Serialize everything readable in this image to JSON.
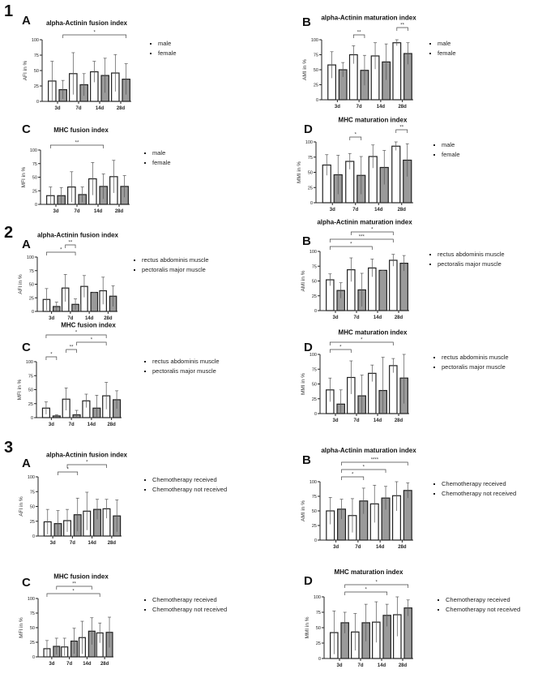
{
  "sections": [
    "1",
    "2",
    "3"
  ],
  "chart_data": [
    {
      "panel": "A",
      "section": "1",
      "type": "bar",
      "title": "alpha-Actinin fusion index",
      "ylabel": "AFI in %",
      "ylim": [
        0,
        100
      ],
      "yticks": [
        0,
        25,
        50,
        75,
        100
      ],
      "categories": [
        "3d",
        "7d",
        "14d",
        "28d"
      ],
      "series": [
        {
          "name": "male",
          "values": [
            33,
            45,
            48,
            46
          ],
          "sd": [
            32,
            34,
            17,
            30
          ],
          "color": "#ffffff"
        },
        {
          "name": "female",
          "values": [
            19,
            27,
            42,
            36
          ],
          "sd": [
            15,
            18,
            28,
            25
          ],
          "color": "#9a9a9a"
        }
      ],
      "significance": [
        {
          "from": 1,
          "to": 7,
          "label": "*"
        }
      ]
    },
    {
      "panel": "B",
      "section": "1",
      "type": "bar",
      "title": "alpha-Actinin maturation index",
      "ylabel": "AMI in %",
      "ylim": [
        0,
        100
      ],
      "yticks": [
        0,
        25,
        50,
        75,
        100
      ],
      "categories": [
        "3d",
        "7d",
        "14d",
        "28d"
      ],
      "series": [
        {
          "name": "male",
          "values": [
            58,
            75,
            73,
            95
          ],
          "sd": [
            22,
            15,
            22,
            5
          ],
          "color": "#ffffff"
        },
        {
          "name": "female",
          "values": [
            50,
            49,
            63,
            77
          ],
          "sd": [
            12,
            25,
            30,
            18
          ],
          "color": "#9a9a9a"
        }
      ],
      "significance": [
        {
          "from": 2,
          "to": 3,
          "label": "**"
        },
        {
          "from": 6,
          "to": 7,
          "label": "**"
        }
      ]
    },
    {
      "panel": "C",
      "section": "1",
      "type": "bar",
      "title": "MHC fusion index",
      "ylabel": "MFI in %",
      "ylim": [
        0,
        100
      ],
      "yticks": [
        0,
        25,
        50,
        75,
        100
      ],
      "categories": [
        "3d",
        "7d",
        "14d",
        "28d"
      ],
      "series": [
        {
          "name": "male",
          "values": [
            16,
            32,
            47,
            51
          ],
          "sd": [
            16,
            28,
            30,
            30
          ],
          "color": "#ffffff"
        },
        {
          "name": "female",
          "values": [
            16,
            18,
            33,
            33
          ],
          "sd": [
            15,
            14,
            23,
            20
          ],
          "color": "#9a9a9a"
        }
      ],
      "significance": [
        {
          "from": 0,
          "to": 5,
          "label": "**"
        }
      ]
    },
    {
      "panel": "D",
      "section": "1",
      "type": "bar",
      "title": "MHC maturation index",
      "ylabel": "MMI in %",
      "ylim": [
        0,
        100
      ],
      "yticks": [
        0,
        25,
        50,
        75,
        100
      ],
      "categories": [
        "3d",
        "7d",
        "14d",
        "28d"
      ],
      "series": [
        {
          "name": "male",
          "values": [
            62,
            68,
            76,
            93
          ],
          "sd": [
            17,
            13,
            19,
            7
          ],
          "color": "#ffffff"
        },
        {
          "name": "female",
          "values": [
            46,
            45,
            58,
            70
          ],
          "sd": [
            32,
            31,
            28,
            27
          ],
          "color": "#9a9a9a"
        }
      ],
      "significance": [
        {
          "from": 2,
          "to": 3,
          "label": "*"
        },
        {
          "from": 6,
          "to": 7,
          "label": "**"
        }
      ]
    },
    {
      "panel": "A",
      "section": "2",
      "type": "bar",
      "title": "alpha-Actinin fusion index",
      "ylabel": "AFI in %",
      "ylim": [
        0,
        100
      ],
      "yticks": [
        0,
        25,
        50,
        75,
        100
      ],
      "categories": [
        "3d",
        "7d",
        "14d",
        "28d"
      ],
      "series": [
        {
          "name": "rectus abdominis muscle",
          "values": [
            22,
            43,
            46,
            38
          ],
          "sd": [
            20,
            25,
            20,
            25
          ],
          "color": "#ffffff"
        },
        {
          "name": "pectoralis major muscle",
          "values": [
            9,
            13,
            35,
            28
          ],
          "sd": [
            8,
            10,
            0,
            19
          ],
          "color": "#9a9a9a"
        }
      ],
      "significance": [
        {
          "from": 0,
          "to": 3,
          "label": "*"
        },
        {
          "from": 2,
          "to": 3,
          "label": "**"
        }
      ]
    },
    {
      "panel": "B",
      "section": "2",
      "type": "bar",
      "title": "alpha-Actinin maturation index",
      "ylabel": "AMI in %",
      "ylim": [
        0,
        100
      ],
      "yticks": [
        0,
        25,
        50,
        75,
        100
      ],
      "categories": [
        "3d",
        "7d",
        "14d",
        "28d"
      ],
      "series": [
        {
          "name": "rectus abdominis muscle",
          "values": [
            52,
            69,
            72,
            85
          ],
          "sd": [
            10,
            20,
            15,
            10
          ],
          "color": "#ffffff"
        },
        {
          "name": "pectoralis major muscle",
          "values": [
            34,
            35,
            68,
            80
          ],
          "sd": [
            13,
            28,
            0,
            13
          ],
          "color": "#9a9a9a"
        }
      ],
      "significance": [
        {
          "from": 0,
          "to": 4,
          "label": "*"
        },
        {
          "from": 0,
          "to": 6,
          "label": "***"
        },
        {
          "from": 2,
          "to": 6,
          "label": "*"
        }
      ]
    },
    {
      "panel": "C",
      "section": "2",
      "type": "bar",
      "title": "MHC fusion index",
      "ylabel": "MFI in %",
      "ylim": [
        0,
        100
      ],
      "yticks": [
        0,
        25,
        50,
        75,
        100
      ],
      "categories": [
        "3d",
        "7d",
        "14d",
        "28d"
      ],
      "series": [
        {
          "name": "rectus abdominis muscle",
          "values": [
            17,
            33,
            30,
            39
          ],
          "sd": [
            11,
            20,
            12,
            24
          ],
          "color": "#ffffff"
        },
        {
          "name": "pectoralis major muscle",
          "values": [
            3,
            5,
            17,
            32
          ],
          "sd": [
            2,
            8,
            23,
            16
          ],
          "color": "#9a9a9a"
        }
      ],
      "significance": [
        {
          "from": 0,
          "to": 1,
          "label": "*"
        },
        {
          "from": 2,
          "to": 3,
          "label": "**"
        },
        {
          "from": 3,
          "to": 6,
          "label": "*"
        },
        {
          "from": 0,
          "to": 6,
          "label": "*"
        }
      ]
    },
    {
      "panel": "D",
      "section": "2",
      "type": "bar",
      "title": "MHC maturation index",
      "ylabel": "MMI in %",
      "ylim": [
        0,
        100
      ],
      "yticks": [
        0,
        25,
        50,
        75,
        100
      ],
      "categories": [
        "3d",
        "7d",
        "14d",
        "28d"
      ],
      "series": [
        {
          "name": "rectus abdominis muscle",
          "values": [
            40,
            61,
            68,
            81
          ],
          "sd": [
            20,
            28,
            14,
            12
          ],
          "color": "#ffffff"
        },
        {
          "name": "pectoralis major muscle",
          "values": [
            16,
            30,
            39,
            60
          ],
          "sd": [
            24,
            35,
            56,
            43
          ],
          "color": "#9a9a9a"
        }
      ],
      "significance": [
        {
          "from": 0,
          "to": 2,
          "label": "*"
        },
        {
          "from": 0,
          "to": 6,
          "label": "*"
        }
      ]
    },
    {
      "panel": "A",
      "section": "3",
      "type": "bar",
      "title": "alpha-Actinin fusion index",
      "ylabel": "AFI in %",
      "ylim": [
        0,
        100
      ],
      "yticks": [
        0,
        25,
        50,
        75,
        100
      ],
      "categories": [
        "3d",
        "7d",
        "14d",
        "28d"
      ],
      "series": [
        {
          "name": "Chemotherapy received",
          "values": [
            24,
            26,
            42,
            46
          ],
          "sd": [
            21,
            19,
            32,
            16
          ],
          "color": "#ffffff"
        },
        {
          "name": "Chemotherapy not received",
          "values": [
            21,
            36,
            45,
            34
          ],
          "sd": [
            22,
            28,
            17,
            27
          ],
          "color": "#9a9a9a"
        }
      ],
      "significance": [
        {
          "from": 1,
          "to": 3,
          "label": "*"
        },
        {
          "from": 2,
          "to": 6,
          "label": "*"
        }
      ]
    },
    {
      "panel": "B",
      "section": "3",
      "type": "bar",
      "title": "alpha-Actinin maturation index",
      "ylabel": "AMI in %",
      "ylim": [
        0,
        100
      ],
      "yticks": [
        0,
        25,
        50,
        75,
        100
      ],
      "categories": [
        "3d",
        "7d",
        "14d",
        "28d"
      ],
      "series": [
        {
          "name": "Chemotherapy received",
          "values": [
            50,
            42,
            62,
            76
          ],
          "sd": [
            23,
            29,
            32,
            26
          ],
          "color": "#ffffff"
        },
        {
          "name": "Chemotherapy not received",
          "values": [
            53,
            67,
            72,
            85
          ],
          "sd": [
            17,
            22,
            20,
            13
          ],
          "color": "#9a9a9a"
        }
      ],
      "significance": [
        {
          "from": 1,
          "to": 3,
          "label": "*"
        },
        {
          "from": 1,
          "to": 5,
          "label": "*"
        },
        {
          "from": 1,
          "to": 7,
          "label": "****"
        }
      ]
    },
    {
      "panel": "C",
      "section": "3",
      "type": "bar",
      "title": "MHC fusion index",
      "ylabel": "MFI in %",
      "ylim": [
        0,
        100
      ],
      "yticks": [
        0,
        25,
        50,
        75,
        100
      ],
      "categories": [
        "3d",
        "7d",
        "14d",
        "28d"
      ],
      "series": [
        {
          "name": "Chemotherapy received",
          "values": [
            14,
            17,
            33,
            41
          ],
          "sd": [
            14,
            15,
            28,
            17
          ],
          "color": "#ffffff"
        },
        {
          "name": "Chemotherapy not received",
          "values": [
            18,
            27,
            44,
            42
          ],
          "sd": [
            14,
            22,
            23,
            26
          ],
          "color": "#9a9a9a"
        }
      ],
      "significance": [
        {
          "from": 0,
          "to": 6,
          "label": "*"
        },
        {
          "from": 1,
          "to": 5,
          "label": "**"
        }
      ]
    },
    {
      "panel": "D",
      "section": "3",
      "type": "bar",
      "title": "MHC maturation index",
      "ylabel": "MMI in %",
      "ylim": [
        0,
        100
      ],
      "yticks": [
        0,
        25,
        50,
        75,
        100
      ],
      "categories": [
        "3d",
        "7d",
        "14d",
        "28d"
      ],
      "series": [
        {
          "name": "Chemotherapy received",
          "values": [
            42,
            43,
            59,
            71
          ],
          "sd": [
            35,
            30,
            33,
            35
          ],
          "color": "#ffffff"
        },
        {
          "name": "Chemotherapy not received",
          "values": [
            58,
            58,
            70,
            82
          ],
          "sd": [
            17,
            30,
            18,
            13
          ],
          "color": "#9a9a9a"
        }
      ],
      "significance": [
        {
          "from": 1,
          "to": 5,
          "label": "*"
        },
        {
          "from": 1,
          "to": 7,
          "label": "*"
        }
      ]
    }
  ]
}
